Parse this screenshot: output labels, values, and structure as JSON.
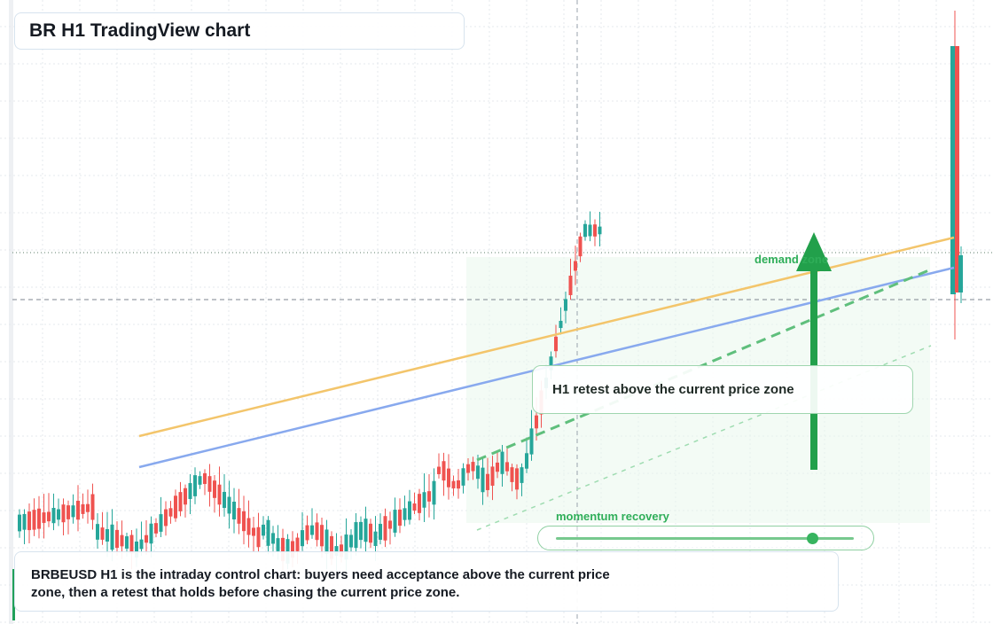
{
  "title": "BR H1 TradingView chart",
  "caption": {
    "line1": "BRBEUSD H1 is the intraday control chart: buyers need acceptance above the current price",
    "line2": "zone, then a retest that holds before chasing the current price zone."
  },
  "callout": "H1 retest above the current price zone",
  "labels": {
    "demand_zone": "demand zone",
    "momentum": "momentum recovery"
  },
  "momentum_level": 0.86,
  "colors": {
    "up": "#26a69a",
    "down": "#ef5350",
    "orange_ma": "#f3c56b",
    "blue_ma": "#88a9ee",
    "green": "#22a04b",
    "zone": "#e9f7ec"
  },
  "chart_data": {
    "type": "candlestick",
    "timeframe": "H1",
    "symbol": "BRBEUSD",
    "candle_count": 120,
    "overlays": [
      "orange moving average",
      "blue moving average",
      "green dashed trendline",
      "demand zone shading",
      "upward arrow"
    ]
  }
}
